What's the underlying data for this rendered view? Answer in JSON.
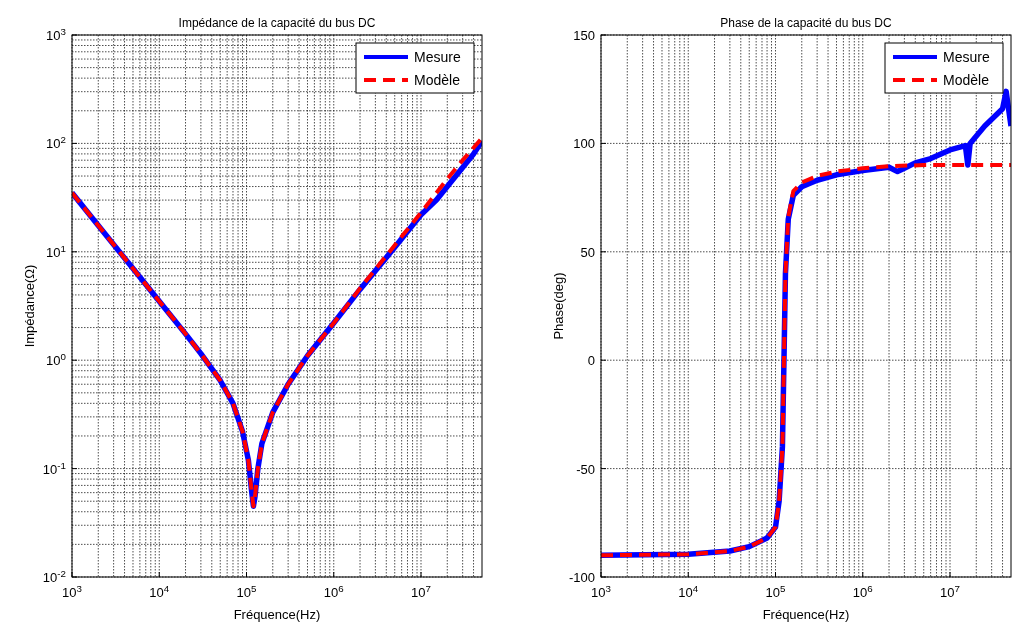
{
  "chart_data": [
    {
      "type": "line",
      "title": "Impédance de la capacité du bus DC",
      "xlabel": "Fréquence(Hz)",
      "ylabel": "Impédance(Ω)",
      "log": "xy",
      "grid": true,
      "legend": "top right",
      "xlim": [
        1000,
        50000000
      ],
      "xticks": [
        {
          "value": 1000,
          "label": "10$^{3}$"
        },
        {
          "value": 10000,
          "label": "10$^{4}$"
        },
        {
          "value": 100000,
          "label": "10$^{5}$"
        },
        {
          "value": 1000000,
          "label": "10$^{6}$"
        },
        {
          "value": 10000000,
          "label": "10$^{7}$"
        }
      ],
      "ylim": [
        0.01,
        1000
      ],
      "yticks": [
        {
          "value": 0.01,
          "label": "10$^{-2}$"
        },
        {
          "value": 0.1,
          "label": "10$^{-1}$"
        },
        {
          "value": 1,
          "label": "10$^{0}$"
        },
        {
          "value": 10,
          "label": "10$^{1}$"
        },
        {
          "value": 100,
          "label": "10$^{2}$"
        },
        {
          "value": 1000,
          "label": "10$^{3}$"
        }
      ],
      "series": [
        {
          "name": "Mesure",
          "color": "#0000ff",
          "line_style": "solid",
          "x": [
            1000,
            2000,
            5000,
            10000,
            20000,
            30000,
            50000,
            70000,
            90000,
            105000,
            115000,
            120000,
            125000,
            135000,
            150000,
            200000,
            300000,
            500000,
            1000000,
            2000000,
            5000000,
            10000000,
            15000000,
            20000000,
            30000000,
            40000000,
            50000000
          ],
          "values": [
            35,
            17.5,
            7,
            3.5,
            1.75,
            1.15,
            0.65,
            0.4,
            0.22,
            0.12,
            0.06,
            0.045,
            0.055,
            0.1,
            0.17,
            0.33,
            0.6,
            1.1,
            2.2,
            4.5,
            11,
            22,
            30,
            40,
            60,
            80,
            105
          ]
        },
        {
          "name": "Modèle",
          "color": "#ff0000",
          "line_style": "dashed",
          "x": [
            1000,
            2000,
            5000,
            10000,
            20000,
            30000,
            50000,
            70000,
            90000,
            105000,
            115000,
            120000,
            125000,
            135000,
            150000,
            200000,
            300000,
            500000,
            1000000,
            2000000,
            5000000,
            10000000,
            20000000,
            30000000,
            50000000
          ],
          "values": [
            35,
            17.5,
            7,
            3.5,
            1.75,
            1.15,
            0.65,
            0.4,
            0.22,
            0.12,
            0.06,
            0.045,
            0.055,
            0.1,
            0.17,
            0.33,
            0.6,
            1.1,
            2.2,
            4.6,
            11.5,
            23,
            47,
            70,
            112
          ]
        }
      ]
    },
    {
      "type": "line",
      "title": "Phase de la capacité du bus DC",
      "xlabel": "Fréquence(Hz)",
      "ylabel": "Phase(deg)",
      "log": "x",
      "grid": true,
      "legend": "top right",
      "xlim": [
        1000,
        50000000
      ],
      "xticks": [
        {
          "value": 1000,
          "label": "10$^{3}$"
        },
        {
          "value": 10000,
          "label": "10$^{4}$"
        },
        {
          "value": 100000,
          "label": "10$^{5}$"
        },
        {
          "value": 1000000,
          "label": "10$^{6}$"
        },
        {
          "value": 10000000,
          "label": "10$^{7}$"
        }
      ],
      "ylim": [
        -100,
        150
      ],
      "yticks": [
        -100,
        -50,
        0,
        50,
        100,
        150
      ],
      "series": [
        {
          "name": "Mesure",
          "color": "#0000ff",
          "line_style": "solid",
          "x": [
            1000,
            10000,
            30000,
            50000,
            80000,
            100000,
            110000,
            120000,
            125000,
            130000,
            140000,
            160000,
            200000,
            300000,
            500000,
            1000000,
            2000000,
            2500000,
            3000000,
            4000000,
            6000000,
            10000000,
            15000000,
            16000000,
            17000000,
            25000000,
            40000000,
            44000000,
            50000000
          ],
          "values": [
            -90,
            -89.5,
            -88,
            -86,
            -82,
            -77,
            -65,
            -40,
            0,
            40,
            65,
            76,
            80,
            83,
            85.5,
            87.5,
            89,
            87,
            88.5,
            91,
            93,
            97,
            99,
            90,
            100,
            108,
            116,
            124,
            108
          ]
        },
        {
          "name": "Modèle",
          "color": "#ff0000",
          "line_style": "dashed",
          "x": [
            1000,
            10000,
            30000,
            50000,
            80000,
            100000,
            110000,
            120000,
            125000,
            130000,
            140000,
            160000,
            200000,
            300000,
            500000,
            1000000,
            2000000,
            5000000,
            50000000
          ],
          "values": [
            -90,
            -89.5,
            -88,
            -86,
            -82,
            -77,
            -65,
            -40,
            0,
            40,
            66,
            78,
            82,
            85,
            87,
            88.5,
            89.5,
            90,
            90
          ]
        }
      ]
    }
  ]
}
